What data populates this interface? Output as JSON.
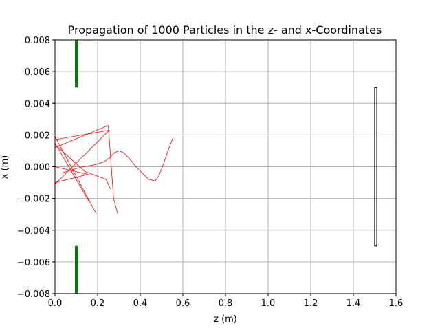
{
  "chart_data": {
    "type": "line",
    "title": "Propagation of 1000 Particles in the z- and x-Coordinates",
    "xlabel": "z (m)",
    "ylabel": "x (m)",
    "xlim": [
      0.0,
      1.6
    ],
    "ylim": [
      -0.008,
      0.008
    ],
    "grid": true,
    "x_ticks": [
      0.0,
      0.2,
      0.4,
      0.6,
      0.8,
      1.0,
      1.2,
      1.4,
      1.6
    ],
    "x_tick_labels": [
      "0.0",
      "0.2",
      "0.4",
      "0.6",
      "0.8",
      "1.0",
      "1.2",
      "1.4",
      "1.6"
    ],
    "y_ticks": [
      -0.008,
      -0.006,
      -0.004,
      -0.002,
      0.0,
      0.002,
      0.004,
      0.006,
      0.008
    ],
    "y_tick_labels": [
      "−0.008",
      "−0.006",
      "−0.004",
      "−0.002",
      "0.000",
      "0.002",
      "0.004",
      "0.006",
      "0.008"
    ],
    "series": [
      {
        "kind": "trajectory",
        "color": "#ff0000",
        "points": [
          [
            0.0,
            0.0019
          ],
          [
            0.195,
            -0.003
          ]
        ]
      },
      {
        "kind": "trajectory",
        "color": "#ff0000",
        "points": [
          [
            0.0,
            0.0015
          ],
          [
            0.16,
            -0.0022
          ]
        ]
      },
      {
        "kind": "trajectory",
        "color": "#ff0000",
        "points": [
          [
            0.0,
            0.0017
          ],
          [
            0.255,
            0.0023
          ]
        ]
      },
      {
        "kind": "trajectory",
        "color": "#ff0000",
        "points": [
          [
            0.0,
            0.0012
          ],
          [
            0.25,
            0.0026
          ]
        ]
      },
      {
        "kind": "trajectory",
        "color": "#ff0000",
        "points": [
          [
            0.0,
            -0.0011
          ],
          [
            0.255,
            0.0023
          ]
        ]
      },
      {
        "kind": "trajectory",
        "color": "#ff0000",
        "points": [
          [
            0.0,
            -0.001
          ],
          [
            0.15,
            -0.0005
          ]
        ]
      },
      {
        "kind": "trajectory",
        "color": "#ff0000",
        "points": [
          [
            0.0,
            0.0
          ],
          [
            0.16,
            -0.0005
          ]
        ]
      },
      {
        "kind": "trajectory",
        "color": "#ff0000",
        "points": [
          [
            0.0,
            0.0014
          ],
          [
            0.14,
            -0.0003
          ],
          [
            0.24,
            -0.0008
          ],
          [
            0.26,
            -0.0014
          ]
        ]
      },
      {
        "kind": "trajectory",
        "color": "#ff0000",
        "points": [
          [
            0.25,
            0.0026
          ],
          [
            0.275,
            -0.002
          ],
          [
            0.295,
            -0.003
          ]
        ]
      },
      {
        "kind": "trajectory",
        "color": "#ff0000",
        "points": [
          [
            0.03,
            -0.0004
          ],
          [
            0.08,
            -0.0002
          ],
          [
            0.13,
            0.0
          ],
          [
            0.18,
            0.0001
          ],
          [
            0.23,
            0.0003
          ],
          [
            0.26,
            0.0006
          ],
          [
            0.28,
            0.0009
          ],
          [
            0.3,
            0.001
          ],
          [
            0.32,
            0.0009
          ],
          [
            0.35,
            0.0005
          ],
          [
            0.38,
            0.0
          ],
          [
            0.41,
            -0.0004
          ],
          [
            0.44,
            -0.0008
          ],
          [
            0.47,
            -0.0009
          ],
          [
            0.49,
            -0.0005
          ],
          [
            0.51,
            0.0002
          ],
          [
            0.53,
            0.001
          ],
          [
            0.553,
            0.0018
          ]
        ]
      },
      {
        "kind": "aperture",
        "color": "#008000",
        "points": [
          [
            0.1,
            0.005
          ],
          [
            0.1,
            0.008
          ]
        ]
      },
      {
        "kind": "aperture",
        "color": "#008000",
        "points": [
          [
            0.1,
            -0.005
          ],
          [
            0.1,
            -0.008
          ]
        ]
      }
    ],
    "detector": {
      "color": "#000000",
      "x_range": [
        1.5,
        1.51
      ],
      "y_range": [
        -0.005,
        0.005
      ]
    }
  }
}
